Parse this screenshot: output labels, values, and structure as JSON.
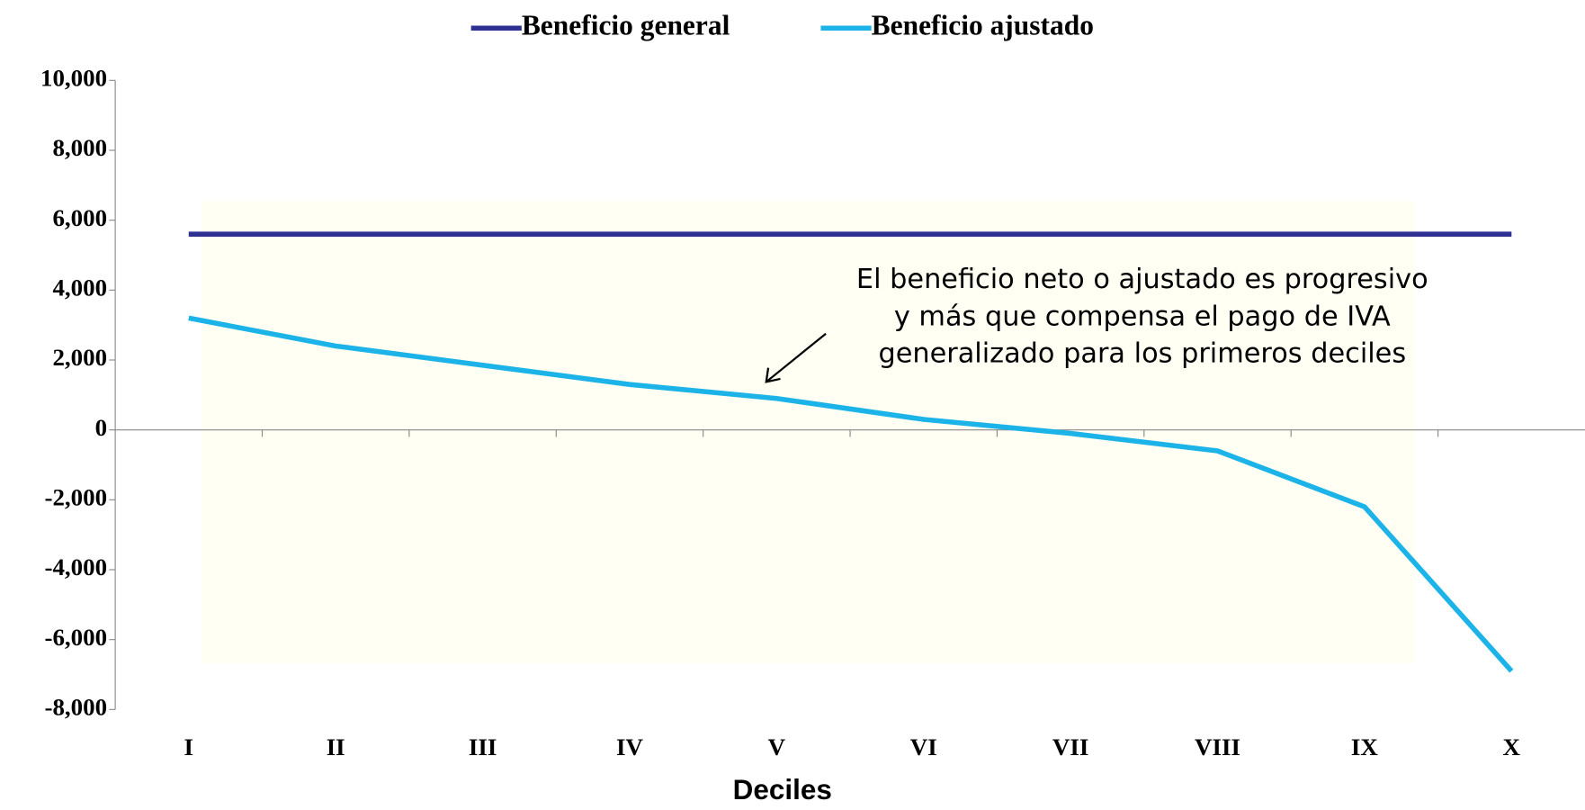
{
  "chart_data": {
    "type": "line",
    "x_label": "Deciles",
    "categories": [
      "I",
      "II",
      "III",
      "IV",
      "V",
      "VI",
      "VII",
      "VIII",
      "IX",
      "X"
    ],
    "series": [
      {
        "name": "Beneficio general",
        "color": "#2e3192",
        "values": [
          5600,
          5600,
          5600,
          5600,
          5600,
          5600,
          5600,
          5600,
          5600,
          5600
        ]
      },
      {
        "name": "Beneficio ajustado",
        "color": "#1cb4e8",
        "values": [
          3200,
          2400,
          1850,
          1300,
          900,
          300,
          -100,
          -600,
          -2200,
          -6900
        ]
      }
    ],
    "ylim": [
      -8000,
      10000
    ],
    "yticks": [
      {
        "value": -8000,
        "label": "-8,000"
      },
      {
        "value": -6000,
        "label": "-6,000"
      },
      {
        "value": -4000,
        "label": "-4,000"
      },
      {
        "value": -2000,
        "label": "-2,000"
      },
      0,
      {
        "value": 2000,
        "label": "2,000"
      },
      {
        "value": 4000,
        "label": "4,000"
      },
      {
        "value": 6000,
        "label": "6,000"
      },
      {
        "value": 8000,
        "label": "8,000"
      },
      {
        "value": 10000,
        "label": "10,000"
      }
    ],
    "annotation": [
      "El beneficio neto o ajustado es progresivo",
      "y más que compensa el pago de IVA",
      "generalizado para los primeros deciles"
    ],
    "legend": "top"
  }
}
